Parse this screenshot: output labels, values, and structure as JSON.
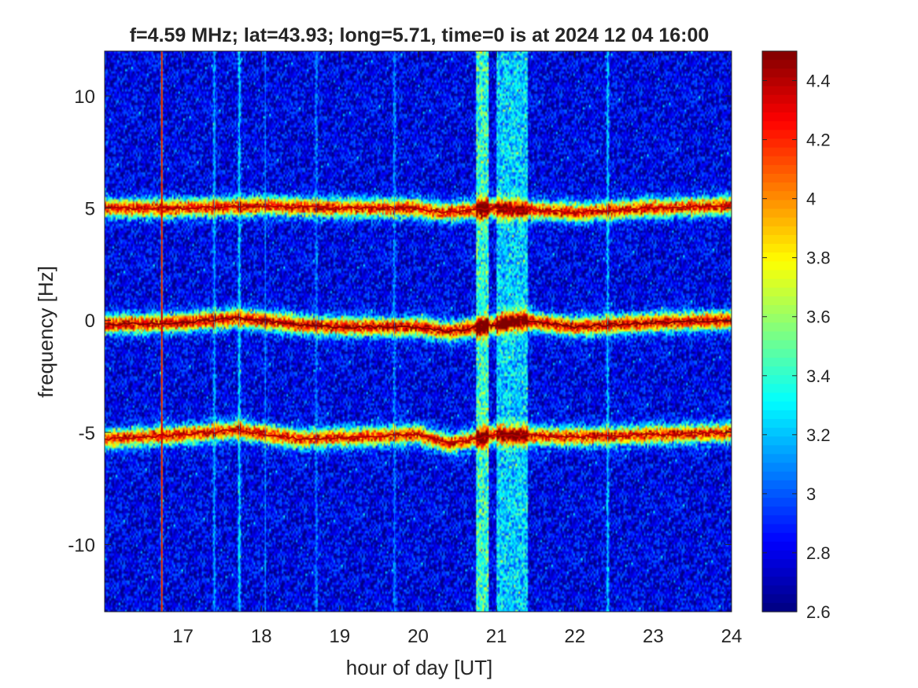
{
  "chart_data": {
    "type": "heatmap",
    "title": "f=4.59 MHz;  lat=43.93; long=5.71, time=0 is at 2024 12 04 16:00",
    "xlabel": "hour of day [UT]",
    "ylabel": "frequency [Hz]",
    "xlim": [
      16.0,
      24.0
    ],
    "ylim": [
      -13.0,
      12.0
    ],
    "xticks": [
      17,
      18,
      19,
      20,
      21,
      22,
      23,
      24
    ],
    "xtick_labels": [
      "17",
      "18",
      "19",
      "20",
      "21",
      "22",
      "23",
      "24"
    ],
    "yticks": [
      10,
      5,
      0,
      -5,
      -10
    ],
    "ytick_labels": [
      "10",
      "5",
      "0",
      "-5",
      "-10"
    ],
    "colorbar": {
      "colormap": "jet",
      "range": [
        2.6,
        4.5
      ],
      "ticks": [
        4.4,
        4.2,
        4,
        3.8,
        3.6,
        3.4,
        3.2,
        3,
        2.8,
        2.6
      ],
      "tick_labels": [
        "4.4",
        "4.2",
        "4",
        "3.8",
        "3.6",
        "3.4",
        "3.2",
        "3",
        "2.8",
        "2.6"
      ]
    },
    "background_level": 2.8,
    "traces": [
      {
        "center_hz": 5.0,
        "peak": 4.4,
        "x": [
          16.0,
          17.0,
          18.0,
          19.0,
          20.0,
          20.3,
          21.0,
          22.0,
          23.0,
          24.0
        ],
        "y": [
          5.0,
          5.0,
          5.1,
          5.0,
          5.0,
          4.8,
          5.0,
          4.8,
          5.0,
          5.1
        ]
      },
      {
        "center_hz": 0.0,
        "peak": 4.5,
        "x": [
          16.0,
          17.0,
          17.7,
          18.5,
          19.0,
          20.0,
          20.4,
          21.0,
          21.3,
          22.0,
          23.0,
          24.0
        ],
        "y": [
          -0.2,
          -0.1,
          0.1,
          -0.2,
          -0.3,
          -0.3,
          -0.5,
          -0.2,
          0.0,
          -0.3,
          -0.1,
          0.0
        ]
      },
      {
        "center_hz": -5.0,
        "peak": 4.4,
        "x": [
          16.0,
          17.0,
          17.7,
          18.5,
          20.0,
          20.4,
          21.0,
          22.0,
          23.0,
          24.0
        ],
        "y": [
          -5.3,
          -5.1,
          -4.9,
          -5.3,
          -5.1,
          -5.5,
          -5.1,
          -5.2,
          -5.1,
          -5.0
        ]
      }
    ],
    "vertical_bands": [
      {
        "x_start": 20.75,
        "x_end": 20.9,
        "level": 3.5
      },
      {
        "x_start": 21.0,
        "x_end": 21.4,
        "level": 3.3
      }
    ],
    "vertical_lines": [
      {
        "x": 16.73,
        "level": 4.3
      },
      {
        "x": 17.4,
        "level": 3.2
      },
      {
        "x": 17.72,
        "level": 3.3
      },
      {
        "x": 18.05,
        "level": 3.1
      },
      {
        "x": 18.7,
        "level": 3.1
      },
      {
        "x": 19.7,
        "level": 3.1
      },
      {
        "x": 22.42,
        "level": 3.3
      }
    ]
  }
}
